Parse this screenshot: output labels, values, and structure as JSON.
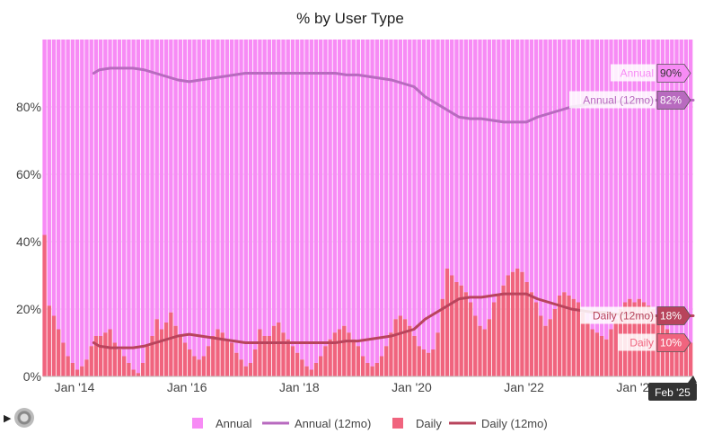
{
  "chart_data": {
    "type": "bar",
    "title": "% by User Type",
    "y_tick_labels": [
      "0%",
      "20%",
      "40%",
      "60%",
      "80%"
    ],
    "y_ticks": [
      0,
      20,
      40,
      60,
      80
    ],
    "ylim": [
      0,
      100
    ],
    "x_tick_labels": [
      "Jan '14",
      "Jan '16",
      "Jan '18",
      "Jan '20",
      "Jan '22",
      "Jan '24"
    ],
    "x_ticks": [
      2014.0,
      2016.0,
      2018.0,
      2020.0,
      2022.0,
      2024.0
    ],
    "xlim": [
      2013.6,
      2025.17
    ],
    "x_start": 2013.625,
    "x_step": 0.08333,
    "end_label": "Feb '25",
    "legend_position": "bottom",
    "series": [
      {
        "name": "Annual",
        "kind": "bar",
        "color": "#f78bf5",
        "values": "complement-of-Daily (100 minus Daily, stacked on top)"
      },
      {
        "name": "Daily",
        "kind": "bar",
        "color": "#f0647e",
        "values": [
          42,
          21,
          18,
          14,
          10,
          6,
          4,
          2,
          3,
          5,
          9,
          12,
          12,
          13,
          14,
          10,
          8,
          6,
          4,
          2,
          1,
          4,
          9,
          12,
          17,
          14,
          16,
          19,
          15,
          12,
          10,
          8,
          6,
          5,
          6,
          9,
          12,
          14,
          13,
          11,
          10,
          7,
          5,
          3,
          4,
          8,
          14,
          12,
          12,
          15,
          16,
          13,
          11,
          9,
          7,
          5,
          3,
          2,
          4,
          6,
          9,
          11,
          13,
          14,
          15,
          13,
          11,
          9,
          6,
          4,
          3,
          4,
          6,
          9,
          13,
          17,
          18,
          17,
          15,
          12,
          9,
          8,
          7,
          8,
          13,
          23,
          32,
          30,
          28,
          27,
          25,
          22,
          18,
          15,
          14,
          17,
          22,
          24,
          27,
          30,
          31,
          32,
          31,
          28,
          25,
          22,
          18,
          15,
          17,
          20,
          24,
          25,
          24,
          23,
          22,
          19,
          16,
          14,
          13,
          12,
          11,
          14,
          17,
          20,
          22,
          23,
          22,
          23,
          22,
          21,
          20,
          18,
          16,
          14,
          12,
          12,
          11,
          10,
          10
        ]
      },
      {
        "name": "Annual (12mo)",
        "kind": "line",
        "color": "#b86abf",
        "x": [
          2014.5,
          2014.6,
          2014.8,
          2015.0,
          2015.2,
          2015.4,
          2015.6,
          2015.8,
          2016.0,
          2016.2,
          2016.4,
          2016.6,
          2016.8,
          2017.0,
          2017.2,
          2017.4,
          2017.6,
          2017.8,
          2018.0,
          2018.2,
          2018.4,
          2018.6,
          2018.8,
          2019.0,
          2019.2,
          2019.4,
          2019.6,
          2019.8,
          2020.0,
          2020.2,
          2020.4,
          2020.6,
          2020.8,
          2021.0,
          2021.2,
          2021.4,
          2021.6,
          2021.8,
          2022.0,
          2022.2,
          2022.4,
          2022.6,
          2022.8,
          2023.0,
          2023.2,
          2023.4,
          2023.6,
          2023.8,
          2024.0,
          2024.2,
          2024.4,
          2024.6,
          2024.8,
          2025.0,
          2025.17
        ],
        "values": [
          90,
          91,
          91.5,
          91.5,
          91.5,
          91,
          90,
          89,
          88,
          87.5,
          88,
          88.5,
          89,
          89.5,
          90,
          90,
          90,
          90,
          90,
          90,
          90,
          90,
          90,
          89.5,
          89.5,
          89,
          88.5,
          88,
          87,
          86,
          83,
          81,
          79,
          77,
          76.5,
          76.5,
          76,
          75.5,
          75.5,
          75.5,
          77,
          78,
          79,
          80,
          80.5,
          81,
          81,
          81.5,
          81.5,
          82,
          82,
          82,
          82,
          82,
          82
        ]
      },
      {
        "name": "Daily (12mo)",
        "kind": "line",
        "color": "#b8445c",
        "x": [
          2014.5,
          2014.6,
          2014.8,
          2015.0,
          2015.2,
          2015.4,
          2015.6,
          2015.8,
          2016.0,
          2016.2,
          2016.4,
          2016.6,
          2016.8,
          2017.0,
          2017.2,
          2017.4,
          2017.6,
          2017.8,
          2018.0,
          2018.2,
          2018.4,
          2018.6,
          2018.8,
          2019.0,
          2019.2,
          2019.4,
          2019.6,
          2019.8,
          2020.0,
          2020.2,
          2020.4,
          2020.6,
          2020.8,
          2021.0,
          2021.2,
          2021.4,
          2021.6,
          2021.8,
          2022.0,
          2022.2,
          2022.4,
          2022.6,
          2022.8,
          2023.0,
          2023.2,
          2023.4,
          2023.6,
          2023.8,
          2024.0,
          2024.2,
          2024.4,
          2024.6,
          2024.8,
          2025.0,
          2025.17
        ],
        "values": [
          10,
          9,
          8.5,
          8.5,
          8.5,
          9,
          10,
          11,
          12,
          12.5,
          12,
          11.5,
          11,
          10.5,
          10,
          10,
          10,
          10,
          10,
          10,
          10,
          10,
          10,
          10.5,
          10.5,
          11,
          11.5,
          12,
          13,
          14,
          17,
          19,
          21,
          23,
          23.5,
          23.5,
          24,
          24.5,
          24.5,
          24.5,
          23,
          22,
          21,
          20,
          19.5,
          19,
          19,
          18.5,
          18.5,
          18,
          18,
          18,
          18,
          18,
          18
        ]
      }
    ],
    "callouts": [
      {
        "text": "Annual",
        "value": "90%",
        "color": "#f78bf5"
      },
      {
        "text": "Annual (12mo)",
        "value": "82%",
        "color": "#b86abf"
      },
      {
        "text": "Daily (12mo)",
        "value": "18%",
        "color": "#b8445c"
      },
      {
        "text": "Daily",
        "value": "10%",
        "color": "#f0647e"
      }
    ]
  },
  "legend": {
    "items": [
      {
        "label": "Annual",
        "kind": "square",
        "color": "#f78bf5"
      },
      {
        "label": "Annual (12mo)",
        "kind": "line",
        "color": "#b86abf"
      },
      {
        "label": "Daily",
        "kind": "square",
        "color": "#f0647e"
      },
      {
        "label": "Daily (12mo)",
        "kind": "line",
        "color": "#b8445c"
      }
    ]
  },
  "controls": {
    "play_icon": "play-icon",
    "settings_icon": "gear-icon",
    "play_glyph": "▶"
  }
}
